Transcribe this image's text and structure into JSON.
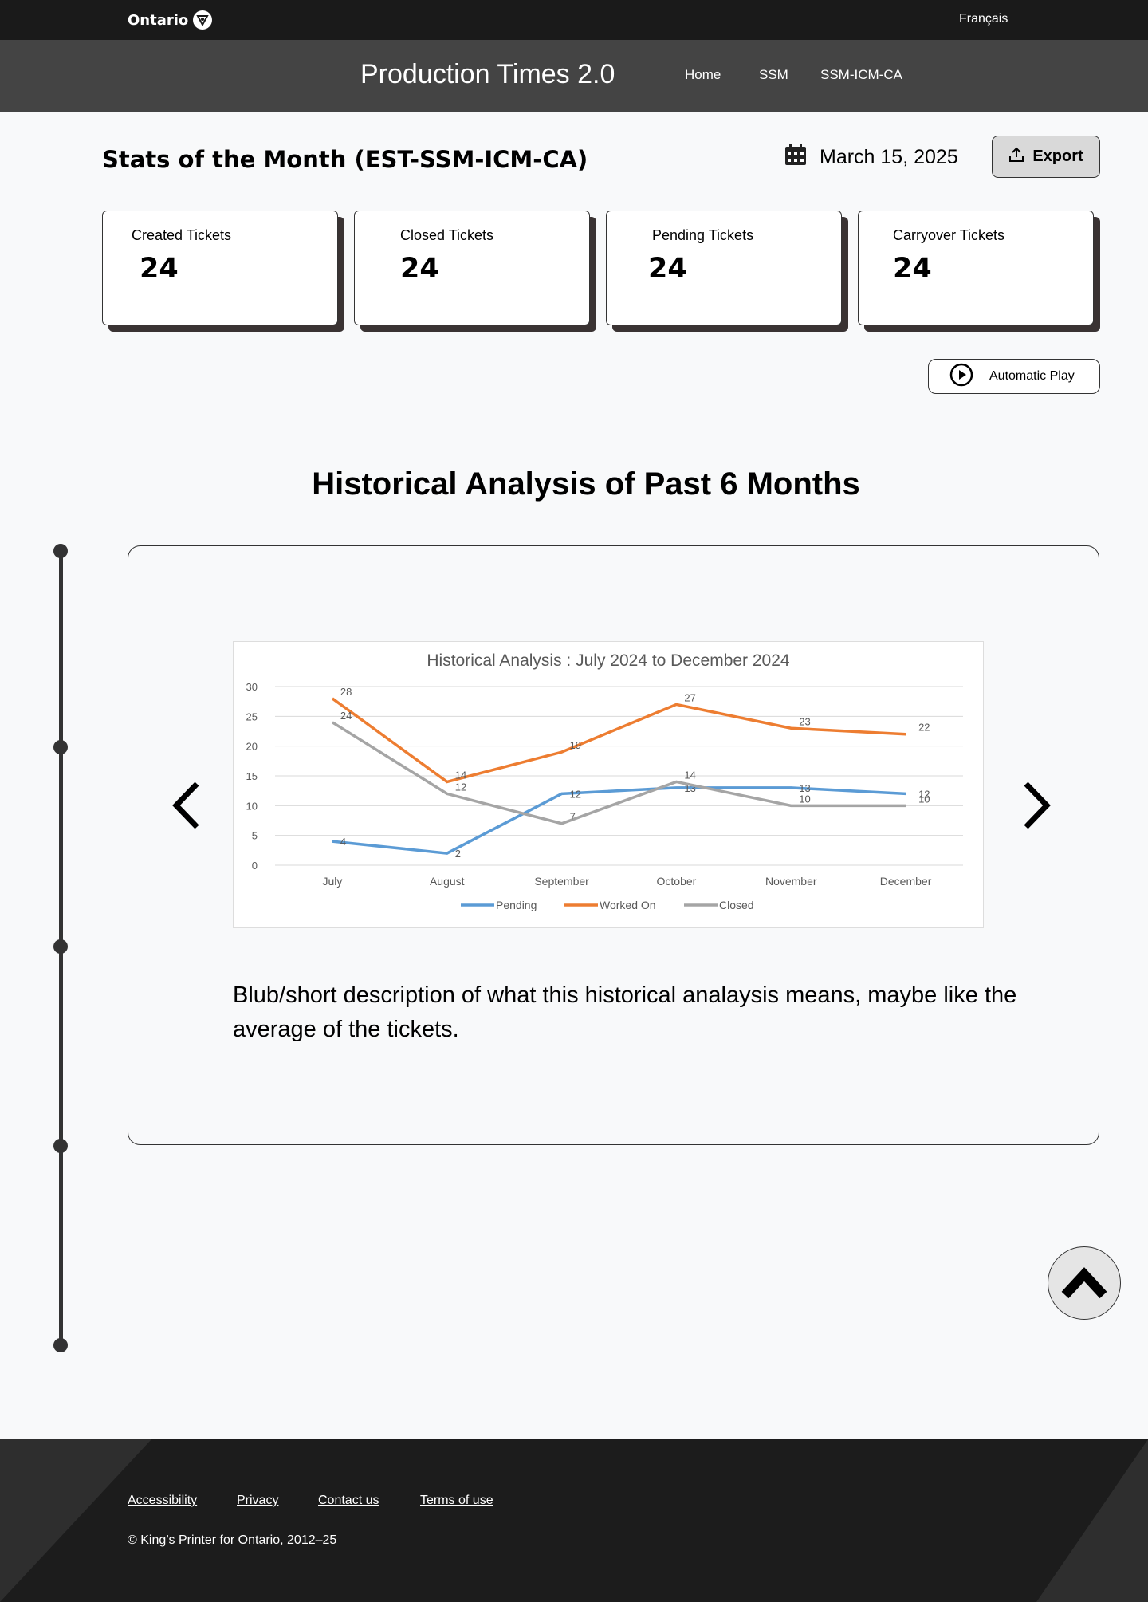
{
  "header": {
    "logo_text": "Ontario",
    "language_link": "Français",
    "app_title": "Production Times 2.0",
    "nav": [
      {
        "label": "Home"
      },
      {
        "label": "SSM"
      },
      {
        "label": "SSM-ICM-CA"
      }
    ]
  },
  "stats": {
    "title": "Stats of the Month (EST-SSM-ICM-CA)",
    "date": "March 15, 2025",
    "export_label": "Export",
    "cards": [
      {
        "label": "Created Tickets",
        "value": "24"
      },
      {
        "label": "Closed Tickets",
        "value": "24"
      },
      {
        "label": "Pending Tickets",
        "value": "24"
      },
      {
        "label": "Carryover Tickets",
        "value": "24"
      }
    ],
    "auto_play_label": "Automatic Play"
  },
  "history": {
    "title": "Historical Analysis of Past 6 Months",
    "description": "Blub/short description of what this historical analaysis means, maybe like the average of the tickets."
  },
  "chart_data": {
    "type": "line",
    "title": "Historical Analysis : July 2024 to December 2024",
    "categories": [
      "July",
      "August",
      "September",
      "October",
      "November",
      "December"
    ],
    "ylim": [
      0,
      30
    ],
    "yticks": [
      0,
      5,
      10,
      15,
      20,
      25,
      30
    ],
    "grid": true,
    "legend": "bottom",
    "series": [
      {
        "name": "Pending",
        "color": "#5b9bd5",
        "values": [
          4,
          2,
          12,
          13,
          13,
          12
        ]
      },
      {
        "name": "Worked On",
        "color": "#ed7d31",
        "values": [
          28,
          14,
          19,
          27,
          23,
          22
        ]
      },
      {
        "name": "Closed",
        "color": "#a5a5a5",
        "values": [
          24,
          12,
          7,
          14,
          10,
          10
        ]
      }
    ]
  },
  "footer": {
    "links": [
      {
        "label": "Accessibility"
      },
      {
        "label": "Privacy"
      },
      {
        "label": "Contact us"
      },
      {
        "label": "Terms of use"
      }
    ],
    "copyright": "© King’s Printer for Ontario, 2012–25"
  }
}
